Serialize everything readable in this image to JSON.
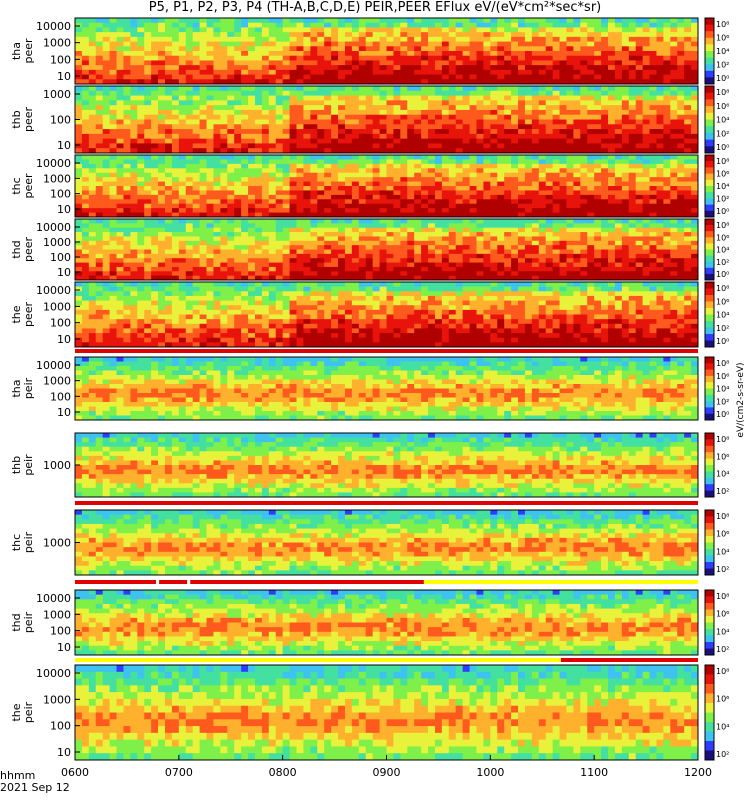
{
  "title": "P5, P1, P2, P3, P4 (TH-A,B,C,D,E) PEIR,PEER EFlux eV/(eV*cm²*sec*sr)",
  "time_axis": {
    "label": "hhmm",
    "date": "2021 Sep 12",
    "ticks": [
      "0600",
      "0700",
      "0800",
      "0900",
      "1000",
      "1100",
      "1200"
    ]
  },
  "colorbar_unit": "eV/(cm2-s-sr-eV)",
  "colors": {
    "spectrum": [
      "#1a0f7a",
      "#2f3cff",
      "#3ec3f0",
      "#43e0a0",
      "#7ff04a",
      "#e9f23a",
      "#ffb02c",
      "#ff5a1e",
      "#e8140c",
      "#b00000"
    ],
    "mode_bar_red": "#e00000",
    "mode_bar_yellow": "#ffff00"
  },
  "chart_data": [
    {
      "type": "heatmap",
      "probe": "tha",
      "species": "peer",
      "ylabel": "tha\npeer",
      "yticks": [
        "10000",
        "1000",
        "100",
        "10"
      ],
      "yscale": "log",
      "cbar_ticks": [
        "10⁸",
        "10⁶",
        "10⁴",
        "10²",
        "10⁰"
      ]
    },
    {
      "type": "heatmap",
      "probe": "thb",
      "species": "peer",
      "ylabel": "thb\npeer",
      "yticks": [
        "1000",
        "100",
        "10"
      ],
      "yscale": "log",
      "cbar_ticks": [
        "10⁸",
        "10⁶",
        "10⁴",
        "10²",
        "10⁰"
      ]
    },
    {
      "type": "heatmap",
      "probe": "thc",
      "species": "peer",
      "ylabel": "thc\npeer",
      "yticks": [
        "10000",
        "1000",
        "100",
        "10"
      ],
      "yscale": "log",
      "cbar_ticks": [
        "10⁸",
        "10⁶",
        "10⁴",
        "10²",
        "10⁰"
      ]
    },
    {
      "type": "heatmap",
      "probe": "thd",
      "species": "peer",
      "ylabel": "thd\npeer",
      "yticks": [
        "10000",
        "1000",
        "100",
        "10"
      ],
      "yscale": "log",
      "cbar_ticks": [
        "10⁸",
        "10⁶",
        "10⁴",
        "10²",
        "10⁰"
      ]
    },
    {
      "type": "heatmap",
      "probe": "the",
      "species": "peer",
      "ylabel": "the\npeer",
      "yticks": [
        "10000",
        "1000",
        "100",
        "10"
      ],
      "yscale": "log",
      "cbar_ticks": [
        "10⁸",
        "10⁶",
        "10⁴",
        "10²",
        "10⁰"
      ]
    },
    {
      "type": "heatmap",
      "probe": "tha",
      "species": "peir",
      "ylabel": "tha\npeir",
      "yticks": [
        "10000",
        "1000",
        "100",
        "10"
      ],
      "yscale": "log",
      "cbar_ticks": [
        "10⁸",
        "10⁶",
        "10⁴",
        "10²",
        "10⁰"
      ]
    },
    {
      "type": "heatmap",
      "probe": "thb",
      "species": "peir",
      "ylabel": "thb\npeir",
      "yticks": [
        "1000"
      ],
      "yscale": "log",
      "cbar_ticks": [
        "10⁸",
        "10⁶",
        "10⁴",
        "10²"
      ]
    },
    {
      "type": "heatmap",
      "probe": "thc",
      "species": "peir",
      "ylabel": "thc\npeir",
      "yticks": [
        "1000"
      ],
      "yscale": "log",
      "cbar_ticks": [
        "10⁸",
        "10⁶",
        "10⁴",
        "10²"
      ]
    },
    {
      "type": "heatmap",
      "probe": "thd",
      "species": "peir",
      "ylabel": "thd\npeir",
      "yticks": [
        "10000",
        "1000",
        "100",
        "10"
      ],
      "yscale": "log",
      "cbar_ticks": [
        "10⁸",
        "10⁶",
        "10⁴",
        "10²"
      ]
    },
    {
      "type": "heatmap",
      "probe": "the",
      "species": "peir",
      "ylabel": "the\npeir",
      "yticks": [
        "10000",
        "1000",
        "100",
        "10"
      ],
      "yscale": "log",
      "cbar_ticks": [
        "10⁸",
        "10⁶",
        "10⁴",
        "10²"
      ]
    }
  ]
}
